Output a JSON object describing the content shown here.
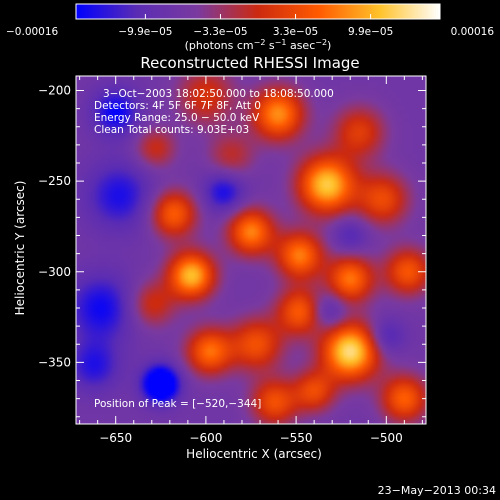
{
  "chart_data": {
    "type": "heatmap",
    "title": "Reconstructed RHESSI Image",
    "xlabel": "Heliocentric X (arcsec)",
    "ylabel": "Heliocentric Y (arcsec)",
    "xlim": [
      -672,
      -478
    ],
    "ylim": [
      -384,
      -192
    ],
    "x_ticks": [
      -650,
      -600,
      -550,
      -500
    ],
    "x_tick_labels": [
      "−650",
      "−600",
      "−550",
      "−500"
    ],
    "y_ticks": [
      -200,
      -250,
      -300,
      -350
    ],
    "y_tick_labels": [
      "−200",
      "−250",
      "−300",
      "−350"
    ],
    "colorbar": {
      "min": -0.00016,
      "max": 0.00016,
      "tick_labels": [
        "−0.00016",
        "−9.9e−05",
        "−3.3e−05",
        "3.3e−05",
        "9.9e−05",
        "0.00016"
      ],
      "tick_values": [
        -0.00016,
        -9.9e-05,
        -3.3e-05,
        3.3e-05,
        9.9e-05,
        0.00016
      ],
      "units_prefix": "(photons cm",
      "units_exp1": "−2",
      "units_mid": " s",
      "units_exp2": "−1",
      "units_mid2": " asec",
      "units_exp3": "−2",
      "units_suffix": ")",
      "colors": [
        "#0000ff",
        "#5a2cb4",
        "#7a3aa0",
        "#cc2a10",
        "#ff5a00",
        "#ffc22a",
        "#ffffff"
      ]
    },
    "annotations": [
      "3−Oct−2003 18:02:50.000 to 18:08:50.000",
      "Detectors: 4F 5F 6F 7F 8F, Att 0",
      "Energy Range: 25.0 − 50.0 keV",
      "Clean    Total counts: 9.03E+03"
    ],
    "peak_label": "Position of Peak = [−520,−344]",
    "peak": [
      -520,
      -344
    ],
    "sources": [
      {
        "x": -520,
        "y": -344,
        "a": 1.0,
        "s": 11
      },
      {
        "x": -533,
        "y": -252,
        "a": 0.92,
        "s": 11
      },
      {
        "x": -608,
        "y": -302,
        "a": 0.88,
        "s": 9
      },
      {
        "x": -560,
        "y": -213,
        "a": 0.75,
        "s": 10
      },
      {
        "x": -575,
        "y": -278,
        "a": 0.72,
        "s": 9
      },
      {
        "x": -548,
        "y": -291,
        "a": 0.7,
        "s": 9
      },
      {
        "x": -520,
        "y": -304,
        "a": 0.68,
        "s": 9
      },
      {
        "x": -618,
        "y": -268,
        "a": 0.62,
        "s": 9
      },
      {
        "x": -598,
        "y": -344,
        "a": 0.66,
        "s": 9
      },
      {
        "x": -572,
        "y": -340,
        "a": 0.55,
        "s": 10
      },
      {
        "x": -548,
        "y": -322,
        "a": 0.6,
        "s": 9
      },
      {
        "x": -502,
        "y": -260,
        "a": 0.52,
        "s": 10
      },
      {
        "x": -488,
        "y": -300,
        "a": 0.58,
        "s": 9
      },
      {
        "x": -490,
        "y": -370,
        "a": 0.62,
        "s": 9
      },
      {
        "x": -515,
        "y": -223,
        "a": 0.45,
        "s": 10
      },
      {
        "x": -600,
        "y": -203,
        "a": 0.4,
        "s": 11
      },
      {
        "x": -628,
        "y": -232,
        "a": 0.35,
        "s": 8
      },
      {
        "x": -562,
        "y": -372,
        "a": 0.55,
        "s": 9
      },
      {
        "x": -630,
        "y": -318,
        "a": 0.38,
        "s": 9
      },
      {
        "x": -540,
        "y": -366,
        "a": 0.5,
        "s": 8
      },
      {
        "x": -586,
        "y": -236,
        "a": 0.3,
        "s": 9
      },
      {
        "x": -658,
        "y": -320,
        "a": -0.42,
        "s": 13
      },
      {
        "x": -648,
        "y": -258,
        "a": -0.38,
        "s": 13
      },
      {
        "x": -625,
        "y": -362,
        "a": -0.85,
        "s": 7
      },
      {
        "x": -650,
        "y": -212,
        "a": -0.45,
        "s": 9
      },
      {
        "x": -662,
        "y": -352,
        "a": -0.35,
        "s": 10
      },
      {
        "x": -590,
        "y": -256,
        "a": -0.4,
        "s": 8
      },
      {
        "x": -532,
        "y": -322,
        "a": -0.3,
        "s": 7
      },
      {
        "x": -500,
        "y": -336,
        "a": -0.3,
        "s": 7
      },
      {
        "x": -520,
        "y": -280,
        "a": -0.25,
        "s": 7
      }
    ]
  },
  "footer": {
    "timestamp": "23−May−2013 00:34"
  }
}
